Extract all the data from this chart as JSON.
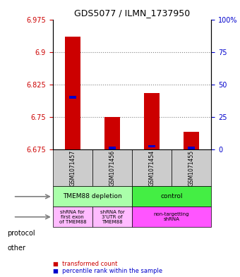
{
  "title": "GDS5077 / ILMN_1737950",
  "samples": [
    "GSM1071457",
    "GSM1071456",
    "GSM1071454",
    "GSM1071455"
  ],
  "red_values": [
    6.935,
    6.75,
    6.805,
    6.715
  ],
  "blue_values": [
    6.795,
    6.678,
    6.682,
    6.678
  ],
  "ymin": 6.675,
  "ymax": 6.975,
  "yticks": [
    6.675,
    6.75,
    6.825,
    6.9,
    6.975
  ],
  "ytick_labels": [
    "6.675",
    "6.75",
    "6.825",
    "6.9",
    "6.975"
  ],
  "right_yticks": [
    0,
    25,
    50,
    75,
    100
  ],
  "right_ytick_labels": [
    "0",
    "25",
    "50",
    "75",
    "100%"
  ],
  "protocol_labels": [
    "TMEM88 depletion",
    "control"
  ],
  "protocol_colors": [
    "#aaffaa",
    "#44ee44"
  ],
  "other_labels": [
    "shRNA for\nfirst exon\nof TMEM88",
    "shRNA for\n3'UTR of\nTMEM88",
    "non-targetting\nshRNA"
  ],
  "other_colors": [
    "#ffbbff",
    "#ffbbff",
    "#ff55ff"
  ],
  "legend_red": "transformed count",
  "legend_blue": "percentile rank within the sample",
  "bar_width": 0.4,
  "red_color": "#cc0000",
  "blue_color": "#0000cc"
}
